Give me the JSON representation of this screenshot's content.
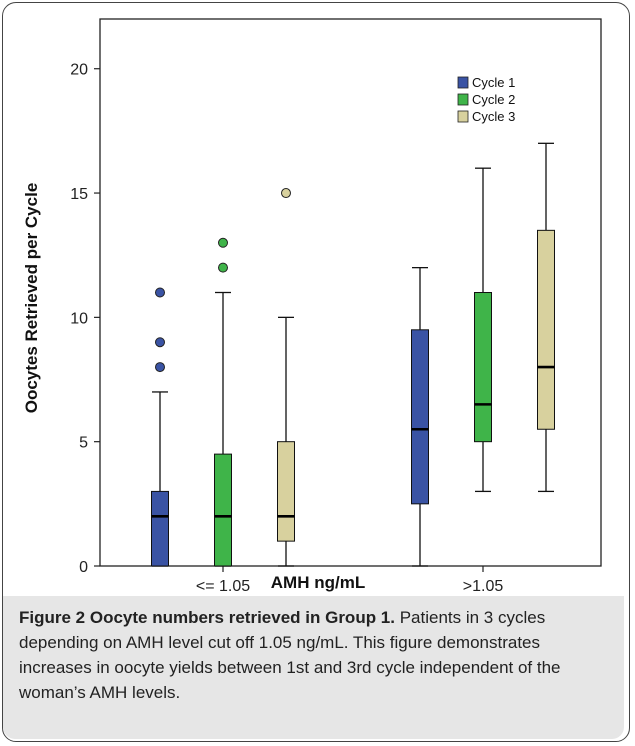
{
  "chart_data": {
    "type": "boxplot",
    "xlabel": "AMH ng/mL",
    "ylabel": "Oocytes Retrieved per Cycle",
    "ylim": [
      0,
      22
    ],
    "yticks": [
      0,
      5,
      10,
      15,
      20
    ],
    "categories": [
      "<= 1.05",
      ">1.05"
    ],
    "legend_position": "top-right",
    "series": [
      {
        "name": "Cycle 1",
        "color": "#3a53a4",
        "boxes": [
          {
            "min": 0,
            "q1": 0,
            "median": 2,
            "q3": 3,
            "max": 7,
            "outliers": [
              8,
              9,
              11
            ]
          },
          {
            "min": 0,
            "q1": 2.5,
            "median": 5.5,
            "q3": 9.5,
            "max": 12,
            "outliers": []
          }
        ]
      },
      {
        "name": "Cycle 2",
        "color": "#3fb449",
        "boxes": [
          {
            "min": 0,
            "q1": 0,
            "median": 2,
            "q3": 4.5,
            "max": 11,
            "outliers": [
              12,
              13
            ]
          },
          {
            "min": 3,
            "q1": 5,
            "median": 6.5,
            "q3": 11,
            "max": 16,
            "outliers": []
          }
        ]
      },
      {
        "name": "Cycle 3",
        "color": "#d8d19e",
        "boxes": [
          {
            "min": 0,
            "q1": 1,
            "median": 2,
            "q3": 5,
            "max": 10,
            "outliers": [
              15
            ]
          },
          {
            "min": 3,
            "q1": 5.5,
            "median": 8,
            "q3": 13.5,
            "max": 17,
            "outliers": []
          }
        ]
      }
    ]
  },
  "caption": {
    "title": "Figure 2 Oocyte numbers retrieved in Group 1.",
    "text": " Patients in 3 cycles depending on AMH level cut off 1.05 ng/mL. This figure demonstrates increases in oocyte yields between 1st and 3rd cycle independent of the woman’s AMH levels."
  }
}
